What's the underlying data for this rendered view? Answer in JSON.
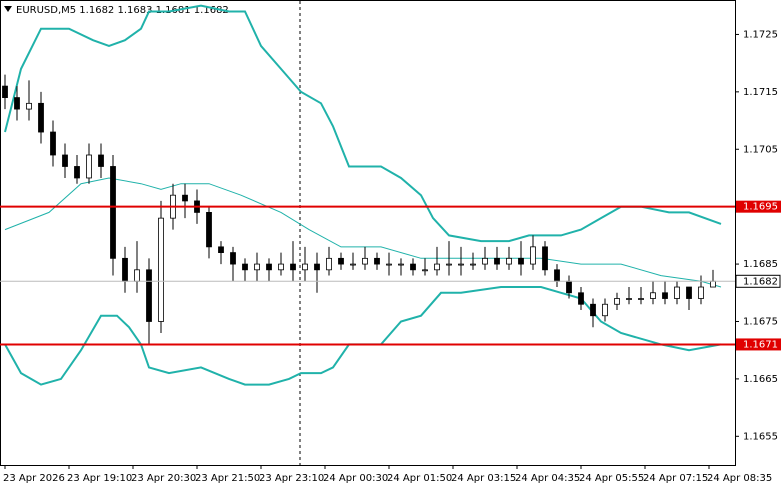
{
  "chart_data": {
    "type": "candlestick",
    "title": "EURUSD,M5  1.1682 1.1683 1.1681 1.1682",
    "xlim": [
      -1.25,
      182.5
    ],
    "xticks": [
      {
        "value": 0,
        "label": "23 Apr 2026"
      },
      {
        "value": 16,
        "label": "23 Apr 19:10"
      },
      {
        "value": 32,
        "label": "23 Apr 20:30"
      },
      {
        "value": 48,
        "label": "23 Apr 21:50"
      },
      {
        "value": 64,
        "label": "23 Apr 23:10"
      },
      {
        "value": 80,
        "label": "24 Apr 00:30"
      },
      {
        "value": 96,
        "label": "24 Apr 01:50"
      },
      {
        "value": 112,
        "label": "24 Apr 03:15"
      },
      {
        "value": 128,
        "label": "24 Apr 04:35"
      },
      {
        "value": 144,
        "label": "24 Apr 05:55"
      },
      {
        "value": 160,
        "label": "24 Apr 07:15"
      },
      {
        "value": 176,
        "label": "24 Apr 08:35"
      }
    ],
    "ylim": [
      1.165,
      1.1731
    ],
    "yticks": [
      1.1725,
      1.1715,
      1.1705,
      1.1685,
      1.1675,
      1.1665,
      1.1655
    ],
    "grid": false,
    "up_color": "#ffffff",
    "down_color": "#000000",
    "candles": {
      "x": [
        0,
        3,
        6,
        9,
        12,
        15,
        18,
        21,
        24,
        27,
        30,
        33,
        36,
        39,
        42,
        45,
        48,
        51,
        54,
        57,
        60,
        63,
        66,
        69,
        72,
        75,
        78,
        81,
        84,
        87,
        90,
        93,
        96,
        99,
        102,
        105,
        108,
        111,
        114,
        117,
        120,
        123,
        126,
        129,
        132,
        135,
        138,
        141,
        144,
        147,
        150,
        153,
        156,
        159,
        162,
        165,
        168,
        171,
        174,
        177
      ],
      "open": [
        1.1716,
        1.1714,
        1.1712,
        1.1713,
        1.1708,
        1.1704,
        1.1702,
        1.17,
        1.1704,
        1.1702,
        1.1686,
        1.1682,
        1.1684,
        1.1675,
        1.1693,
        1.1697,
        1.1696,
        1.1694,
        1.1688,
        1.1687,
        1.1685,
        1.1684,
        1.1685,
        1.1684,
        1.1685,
        1.1684,
        1.1685,
        1.1684,
        1.1686,
        1.1685,
        1.1685,
        1.1686,
        1.1685,
        1.1685,
        1.1685,
        1.1684,
        1.1684,
        1.1685,
        1.1685,
        1.1685,
        1.1685,
        1.1686,
        1.1685,
        1.1686,
        1.1685,
        1.1688,
        1.1684,
        1.1682,
        1.168,
        1.1678,
        1.1676,
        1.1678,
        1.1679,
        1.1679,
        1.1679,
        1.168,
        1.1679,
        1.1681,
        1.1679,
        1.1681
      ],
      "high": [
        1.1718,
        1.1716,
        1.1717,
        1.1715,
        1.171,
        1.1706,
        1.1704,
        1.1706,
        1.1706,
        1.1704,
        1.1688,
        1.1689,
        1.1686,
        1.1696,
        1.1699,
        1.1699,
        1.1698,
        1.1695,
        1.1689,
        1.1688,
        1.1686,
        1.1687,
        1.1686,
        1.1687,
        1.1689,
        1.1688,
        1.1687,
        1.1688,
        1.1687,
        1.1687,
        1.1688,
        1.1687,
        1.1687,
        1.1686,
        1.1686,
        1.1686,
        1.1688,
        1.1689,
        1.1688,
        1.1687,
        1.1688,
        1.1688,
        1.1688,
        1.1689,
        1.169,
        1.1689,
        1.1685,
        1.1683,
        1.1681,
        1.1679,
        1.1679,
        1.168,
        1.1681,
        1.1681,
        1.1682,
        1.1682,
        1.1682,
        1.1681,
        1.1683,
        1.1684
      ],
      "low": [
        1.1712,
        1.171,
        1.171,
        1.1706,
        1.1702,
        1.17,
        1.1699,
        1.1699,
        1.17,
        1.1683,
        1.168,
        1.168,
        1.1671,
        1.1673,
        1.1691,
        1.1693,
        1.1692,
        1.1686,
        1.1685,
        1.1682,
        1.1682,
        1.1682,
        1.1682,
        1.1683,
        1.1682,
        1.1682,
        1.168,
        1.1683,
        1.1684,
        1.1684,
        1.1684,
        1.1684,
        1.1683,
        1.1683,
        1.1683,
        1.1683,
        1.1683,
        1.1683,
        1.1683,
        1.1684,
        1.1684,
        1.1684,
        1.1684,
        1.1683,
        1.1684,
        1.1683,
        1.1681,
        1.1679,
        1.1677,
        1.1674,
        1.1675,
        1.1677,
        1.1678,
        1.1678,
        1.1678,
        1.1678,
        1.1678,
        1.1677,
        1.1678,
        1.1681
      ],
      "close": [
        1.1714,
        1.1712,
        1.1713,
        1.1708,
        1.1704,
        1.1702,
        1.17,
        1.1704,
        1.1702,
        1.1686,
        1.1682,
        1.1684,
        1.1675,
        1.1693,
        1.1697,
        1.1696,
        1.1694,
        1.1688,
        1.1687,
        1.1685,
        1.1684,
        1.1685,
        1.1684,
        1.1685,
        1.1684,
        1.1685,
        1.1684,
        1.1686,
        1.1685,
        1.1685,
        1.1686,
        1.1685,
        1.1685,
        1.1685,
        1.1684,
        1.1684,
        1.1685,
        1.1685,
        1.1685,
        1.1685,
        1.1686,
        1.1685,
        1.1686,
        1.1685,
        1.1688,
        1.1684,
        1.1682,
        1.168,
        1.1678,
        1.1676,
        1.1678,
        1.1679,
        1.1679,
        1.1679,
        1.168,
        1.1679,
        1.1681,
        1.1679,
        1.1681,
        1.1682
      ]
    },
    "lines": [
      {
        "color": "#20b2aa",
        "x": [
          0,
          4,
          9,
          16,
          22,
          26,
          30,
          34,
          36,
          41,
          49,
          56,
          60,
          64,
          69,
          74,
          79,
          82,
          86,
          94,
          99,
          104,
          107,
          111,
          119,
          126,
          131,
          139,
          144,
          149,
          154,
          159,
          166,
          171,
          179
        ],
        "values": [
          1.1708,
          1.1719,
          1.1726,
          1.1726,
          1.1724,
          1.1723,
          1.1724,
          1.1726,
          1.1729,
          1.1729,
          1.173,
          1.1729,
          1.1729,
          1.1723,
          1.1719,
          1.1715,
          1.1713,
          1.1709,
          1.1702,
          1.1702,
          1.17,
          1.1697,
          1.1693,
          1.169,
          1.1689,
          1.1689,
          1.169,
          1.169,
          1.1691,
          1.1693,
          1.1695,
          1.1695,
          1.1694,
          1.1694,
          1.1692
        ]
      },
      {
        "color": "#20b2aa",
        "x": [
          0,
          11,
          19,
          26,
          34,
          39,
          44,
          51,
          59,
          69,
          76,
          84,
          94,
          104,
          111,
          124,
          134,
          144,
          154,
          164,
          174,
          179
        ],
        "values": [
          1.1691,
          1.1694,
          1.1699,
          1.17,
          1.1699,
          1.1698,
          1.1699,
          1.1699,
          1.1697,
          1.1694,
          1.1691,
          1.1688,
          1.1688,
          1.1686,
          1.1686,
          1.1686,
          1.1686,
          1.1685,
          1.1685,
          1.1683,
          1.1682,
          1.1681
        ]
      },
      {
        "color": "#20b2aa",
        "x": [
          0,
          4,
          9,
          14,
          19,
          24,
          28,
          31,
          34,
          36,
          41,
          49,
          56,
          60,
          64,
          66,
          71,
          74,
          79,
          82,
          86,
          94,
          99,
          104,
          109,
          114,
          124,
          134,
          139,
          144,
          149,
          154,
          164,
          171,
          179
        ],
        "values": [
          1.1671,
          1.1666,
          1.1664,
          1.1665,
          1.167,
          1.1676,
          1.1676,
          1.1674,
          1.1671,
          1.1667,
          1.1666,
          1.1667,
          1.1665,
          1.1664,
          1.1664,
          1.1664,
          1.1665,
          1.1666,
          1.1666,
          1.1667,
          1.1671,
          1.1671,
          1.1675,
          1.1676,
          1.168,
          1.168,
          1.1681,
          1.1681,
          1.168,
          1.1679,
          1.1675,
          1.1673,
          1.1671,
          1.167,
          1.1671
        ]
      }
    ],
    "levels": [
      1.1695,
      1.1671
    ],
    "level_color": "#e00000",
    "last_price": 1.1682
  }
}
